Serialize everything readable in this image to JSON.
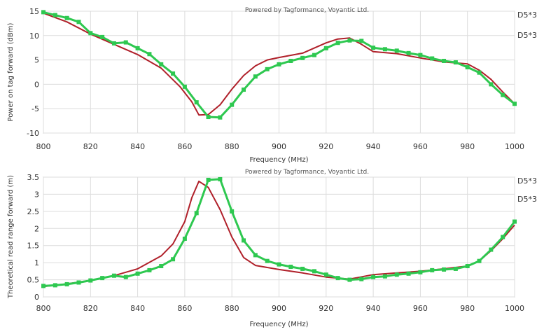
{
  "chart_data": [
    {
      "type": "line",
      "banner": "Powered by Tagformance, Voyantic Ltd.",
      "xlabel": "Frequency (MHz)",
      "ylabel": "Power on tag forward (dBm)",
      "xlim": [
        800,
        1000
      ],
      "ylim": [
        -10,
        15
      ],
      "xticks": [
        800,
        820,
        840,
        860,
        880,
        900,
        920,
        940,
        960,
        980,
        1000
      ],
      "yticks": [
        -10,
        -5,
        0,
        5,
        10,
        15
      ],
      "grid": true,
      "legend_position": "right",
      "series": [
        {
          "name": "D5*3",
          "color": "#b0202a",
          "marker": "none",
          "x": [
            800,
            810,
            820,
            830,
            840,
            850,
            858,
            863,
            866,
            870,
            875,
            880,
            885,
            890,
            895,
            900,
            910,
            920,
            925,
            930,
            935,
            940,
            950,
            960,
            970,
            980,
            985,
            990,
            995,
            1000
          ],
          "y": [
            14.6,
            12.8,
            10.3,
            8.2,
            6.1,
            3.3,
            -0.5,
            -3.6,
            -6.3,
            -6.2,
            -4.2,
            -1.0,
            1.8,
            3.8,
            5.0,
            5.5,
            6.4,
            8.5,
            9.3,
            9.5,
            8.2,
            6.7,
            6.3,
            5.4,
            4.6,
            4.2,
            2.9,
            1.0,
            -1.6,
            -4.0
          ]
        },
        {
          "name": "D5*3",
          "color": "#2ec850",
          "marker": "square",
          "x": [
            800,
            805,
            810,
            815,
            820,
            825,
            830,
            835,
            840,
            845,
            850,
            855,
            860,
            865,
            870,
            875,
            880,
            885,
            890,
            895,
            900,
            905,
            910,
            915,
            920,
            925,
            930,
            935,
            940,
            945,
            950,
            955,
            960,
            965,
            970,
            975,
            980,
            985,
            990,
            995,
            1000
          ],
          "y": [
            14.8,
            14.2,
            13.6,
            12.8,
            10.5,
            9.7,
            8.4,
            8.6,
            7.4,
            6.2,
            4.1,
            2.2,
            -0.5,
            -3.7,
            -6.7,
            -6.8,
            -4.2,
            -1.1,
            1.6,
            3.1,
            4.1,
            4.8,
            5.4,
            6.0,
            7.4,
            8.5,
            9.0,
            8.9,
            7.5,
            7.2,
            6.9,
            6.4,
            6.0,
            5.3,
            4.8,
            4.5,
            3.5,
            2.4,
            0.0,
            -2.2,
            -4.0
          ]
        }
      ]
    },
    {
      "type": "line",
      "banner": "Powered by Tagformance, Voyantic Ltd.",
      "xlabel": "Frequency (MHz)",
      "ylabel": "Theoretical read range forward (m)",
      "xlim": [
        800,
        1000
      ],
      "ylim": [
        0,
        3.5
      ],
      "xticks": [
        800,
        820,
        840,
        860,
        880,
        900,
        920,
        940,
        960,
        980,
        1000
      ],
      "yticks": [
        0,
        0.5,
        1,
        1.5,
        2,
        2.5,
        3,
        3.5
      ],
      "grid": true,
      "legend_position": "right",
      "series": [
        {
          "name": "D5*3",
          "color": "#b0202a",
          "marker": "none",
          "x": [
            800,
            810,
            820,
            830,
            840,
            850,
            855,
            860,
            863,
            866,
            870,
            875,
            880,
            885,
            890,
            900,
            910,
            920,
            930,
            940,
            950,
            960,
            970,
            980,
            985,
            990,
            995,
            1000
          ],
          "y": [
            0.3,
            0.38,
            0.48,
            0.62,
            0.82,
            1.2,
            1.55,
            2.2,
            2.9,
            3.38,
            3.2,
            2.55,
            1.75,
            1.15,
            0.92,
            0.8,
            0.7,
            0.58,
            0.52,
            0.65,
            0.7,
            0.75,
            0.82,
            0.9,
            1.05,
            1.35,
            1.7,
            2.1
          ]
        },
        {
          "name": "D5*3",
          "color": "#2ec850",
          "marker": "square",
          "x": [
            800,
            805,
            810,
            815,
            820,
            825,
            830,
            835,
            840,
            845,
            850,
            855,
            860,
            865,
            870,
            875,
            880,
            885,
            890,
            895,
            900,
            905,
            910,
            915,
            920,
            925,
            930,
            935,
            940,
            945,
            950,
            955,
            960,
            965,
            970,
            975,
            980,
            985,
            990,
            995,
            1000
          ],
          "y": [
            0.32,
            0.34,
            0.37,
            0.42,
            0.48,
            0.55,
            0.62,
            0.58,
            0.68,
            0.78,
            0.9,
            1.1,
            1.7,
            2.45,
            3.42,
            3.44,
            2.5,
            1.65,
            1.22,
            1.05,
            0.95,
            0.88,
            0.82,
            0.75,
            0.65,
            0.55,
            0.5,
            0.52,
            0.58,
            0.6,
            0.65,
            0.68,
            0.72,
            0.78,
            0.8,
            0.82,
            0.9,
            1.05,
            1.38,
            1.75,
            2.2
          ]
        }
      ]
    }
  ]
}
